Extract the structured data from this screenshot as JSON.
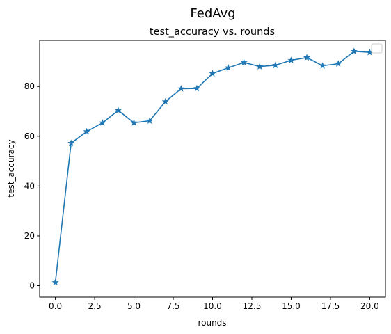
{
  "suptitle": "FedAvg",
  "chart_data": {
    "type": "line",
    "title": "test_accuracy vs. rounds",
    "xlabel": "rounds",
    "ylabel": "test_accuracy",
    "xlim": [
      -1.0,
      21.0
    ],
    "ylim": [
      -4.6,
      98.5
    ],
    "xticks": [
      0.0,
      2.5,
      5.0,
      7.5,
      10.0,
      12.5,
      15.0,
      17.5,
      20.0
    ],
    "xtick_labels": [
      "0.0",
      "2.5",
      "5.0",
      "7.5",
      "10.0",
      "12.5",
      "15.0",
      "17.5",
      "20.0"
    ],
    "yticks": [
      0,
      20,
      40,
      60,
      80
    ],
    "ytick_labels": [
      "0",
      "20",
      "40",
      "60",
      "80"
    ],
    "grid": false,
    "legend": "top-right (empty)",
    "marker": "star",
    "color": "#1f77b4",
    "series": [
      {
        "x": [
          0,
          1,
          2,
          3,
          4,
          5,
          6,
          7,
          8,
          9,
          10,
          11,
          12,
          13,
          14,
          15,
          16,
          17,
          18,
          19,
          20
        ],
        "values": [
          1.3,
          57.2,
          61.9,
          65.4,
          70.4,
          65.4,
          66.2,
          73.9,
          79.1,
          79.2,
          85.2,
          87.5,
          89.6,
          88.0,
          88.5,
          90.5,
          91.6,
          88.3,
          89.1,
          94.1,
          93.7
        ]
      }
    ]
  }
}
